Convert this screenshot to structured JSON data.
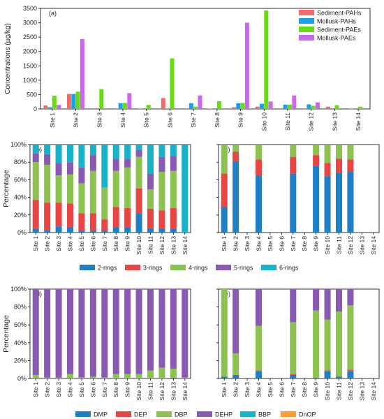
{
  "colors": {
    "sediment_pahs": "#f26b6b",
    "mollusk_pahs": "#1aa1e6",
    "sediment_paes": "#66dd11",
    "mollusk_paes": "#cc66ee",
    "r2": "#1f7fc4",
    "r3": "#e84545",
    "r4": "#8cc24f",
    "r5": "#8a5ab3",
    "r6": "#1ab2c9",
    "dmp": "#1f7fc4",
    "dep": "#e84545",
    "dbp": "#8cc24f",
    "dehp": "#8a5ab3",
    "bbp": "#1ab2c9",
    "dnop": "#ff9b33"
  },
  "chart_data": [
    {
      "panel": "(a)",
      "type": "bar",
      "ylabel": "Concentrations (µg/kg)",
      "ylim": [
        0,
        3500
      ],
      "yticks": [
        0,
        500,
        1000,
        1500,
        2000,
        2500,
        3000,
        3500
      ],
      "categories": [
        "Site 1",
        "Site 2",
        "Site 3",
        "Site 4",
        "Site 5",
        "Site 6",
        "Site 7",
        "Site 8",
        "Site 9",
        "Site 10",
        "Site 11",
        "Site 12",
        "Site 13",
        "Site 14"
      ],
      "legend_position": "top-right",
      "series": [
        {
          "name": "Sediment-PAHs",
          "color_key": "sediment_pahs",
          "values": [
            120,
            520,
            20,
            20,
            10,
            380,
            20,
            10,
            60,
            80,
            20,
            20,
            80,
            10
          ]
        },
        {
          "name": "Mollusk-PAHs",
          "color_key": "mollusk_pahs",
          "values": [
            60,
            520,
            0,
            200,
            0,
            0,
            200,
            0,
            200,
            180,
            150,
            160,
            0,
            0
          ]
        },
        {
          "name": "Sediment-PAEs",
          "color_key": "sediment_paes",
          "values": [
            460,
            600,
            690,
            210,
            140,
            1760,
            80,
            270,
            210,
            3430,
            150,
            110,
            130,
            80
          ]
        },
        {
          "name": "Mollusk-PAEs",
          "color_key": "mollusk_paes",
          "values": [
            140,
            2430,
            0,
            550,
            0,
            0,
            470,
            0,
            3000,
            260,
            470,
            230,
            0,
            0
          ]
        }
      ]
    },
    {
      "panel": "(b)",
      "type": "bar",
      "stacked": true,
      "ylabel": "Percentage",
      "yticks": [
        "0%",
        "20%",
        "40%",
        "60%",
        "80%",
        "100%"
      ],
      "categories": [
        "Site 1",
        "Site 2",
        "Site 3",
        "Site 4",
        "Site 5",
        "Site 6",
        "Site 7",
        "Site 8",
        "Site 9",
        "Site 10",
        "Site 11",
        "Site 12",
        "Site 13",
        "Site 14"
      ],
      "series": [
        {
          "name": "2-rings",
          "color_key": "r2",
          "values": [
            4,
            3,
            7,
            6,
            2,
            2,
            2,
            6,
            6,
            22,
            5,
            4,
            4,
            0
          ]
        },
        {
          "name": "3-rings",
          "color_key": "r3",
          "values": [
            33,
            31,
            27,
            27,
            20,
            20,
            13,
            23,
            22,
            28,
            22,
            21,
            24,
            0
          ]
        },
        {
          "name": "4-rings",
          "color_key": "r4",
          "values": [
            43,
            43,
            31,
            33,
            34,
            48,
            36,
            41,
            46,
            36,
            22,
            44,
            42,
            0
          ]
        },
        {
          "name": "5-rings",
          "color_key": "r5",
          "values": [
            10,
            12,
            14,
            14,
            18,
            18,
            0,
            14,
            10,
            8,
            18,
            17,
            17,
            0
          ]
        },
        {
          "name": "6-rings",
          "color_key": "r6",
          "values": [
            10,
            11,
            21,
            20,
            26,
            12,
            49,
            16,
            16,
            6,
            33,
            14,
            13,
            100
          ]
        }
      ]
    },
    {
      "panel": "(c)",
      "type": "bar",
      "stacked": true,
      "categories": [
        "Site 1",
        "Site 2",
        "Site 3",
        "Site 4",
        "Site 5",
        "Site 6",
        "Site 7",
        "Site 8",
        "Site 9",
        "Site 10",
        "Site 11",
        "Site 12",
        "Site 13",
        "Site 14"
      ],
      "series": [
        {
          "name": "2-rings",
          "color_key": "r2",
          "values": [
            29,
            81,
            0,
            65,
            0,
            0,
            67,
            0,
            76,
            64,
            68,
            69,
            0,
            0
          ]
        },
        {
          "name": "3-rings",
          "color_key": "r3",
          "values": [
            38,
            11,
            0,
            18,
            0,
            0,
            19,
            0,
            12,
            15,
            16,
            14,
            0,
            0
          ]
        },
        {
          "name": "4-rings",
          "color_key": "r4",
          "values": [
            33,
            8,
            0,
            17,
            0,
            0,
            14,
            0,
            12,
            21,
            16,
            17,
            0,
            0
          ]
        },
        {
          "name": "5-rings",
          "color_key": "r5",
          "values": [
            0,
            0,
            0,
            0,
            0,
            0,
            0,
            0,
            0,
            0,
            0,
            0,
            0,
            0
          ]
        },
        {
          "name": "6-rings",
          "color_key": "r6",
          "values": [
            0,
            0,
            0,
            0,
            0,
            0,
            0,
            0,
            0,
            0,
            0,
            0,
            0,
            0
          ]
        }
      ]
    },
    {
      "panel": "(d)",
      "type": "bar",
      "stacked": true,
      "ylabel": "Percentage",
      "yticks": [
        "0%",
        "20%",
        "40%",
        "60%",
        "80%",
        "100%"
      ],
      "categories": [
        "Site 1",
        "Site 2",
        "Site 3",
        "Site 4",
        "Site 5",
        "Site 6",
        "Site 7",
        "Site 8",
        "Site 9",
        "Site 10",
        "Site 11",
        "Site 12",
        "Site 13",
        "Site 14"
      ],
      "series": [
        {
          "name": "DMP",
          "color_key": "dmp",
          "values": [
            0,
            0,
            0,
            0,
            0,
            0,
            0,
            0,
            0,
            0,
            0,
            0,
            1,
            0
          ]
        },
        {
          "name": "DEP",
          "color_key": "dep",
          "values": [
            0,
            0,
            0,
            0,
            0,
            0,
            0,
            0,
            0,
            0,
            0,
            0,
            0,
            0
          ]
        },
        {
          "name": "DBP",
          "color_key": "dbp",
          "values": [
            4,
            1,
            1,
            5,
            1,
            2,
            1,
            5,
            5,
            5,
            9,
            12,
            10,
            1
          ]
        },
        {
          "name": "DEHP",
          "color_key": "dehp",
          "values": [
            96,
            99,
            99,
            95,
            99,
            98,
            99,
            95,
            95,
            95,
            91,
            88,
            89,
            99
          ]
        },
        {
          "name": "BBP",
          "color_key": "bbp",
          "values": [
            0,
            0,
            0,
            0,
            0,
            0,
            0,
            0,
            0,
            0,
            0,
            0,
            0,
            0
          ]
        },
        {
          "name": "DnOP",
          "color_key": "dnop",
          "values": [
            0,
            0,
            0,
            0,
            0,
            0,
            0,
            0,
            0,
            0,
            0,
            0,
            0,
            0
          ]
        }
      ]
    },
    {
      "panel": "(e)",
      "type": "bar",
      "stacked": true,
      "categories": [
        "Site 1",
        "Site 2",
        "Site 3",
        "Site 4",
        "Site 5",
        "Site 6",
        "Site 7",
        "Site 8",
        "Site 9",
        "Site 10",
        "Site 11",
        "Site 12",
        "Site 13",
        "Site 14"
      ],
      "series": [
        {
          "name": "DMP",
          "color_key": "dmp",
          "values": [
            2,
            4,
            0,
            8,
            0,
            0,
            4,
            0,
            1,
            8,
            2,
            8,
            0,
            0
          ]
        },
        {
          "name": "DEP",
          "color_key": "dep",
          "values": [
            0,
            0,
            0,
            1,
            0,
            0,
            1,
            0,
            0,
            1,
            0,
            2,
            0,
            0
          ]
        },
        {
          "name": "DBP",
          "color_key": "dbp",
          "values": [
            98,
            24,
            0,
            50,
            0,
            0,
            58,
            0,
            75,
            57,
            73,
            72,
            0,
            0
          ]
        },
        {
          "name": "DEHP",
          "color_key": "dehp",
          "values": [
            0,
            72,
            0,
            41,
            0,
            0,
            37,
            0,
            24,
            34,
            25,
            18,
            0,
            0
          ]
        },
        {
          "name": "BBP",
          "color_key": "bbp",
          "values": [
            0,
            0,
            0,
            0,
            0,
            0,
            0,
            0,
            0,
            0,
            0,
            0,
            0,
            0
          ]
        },
        {
          "name": "DnOP",
          "color_key": "dnop",
          "values": [
            0,
            0,
            0,
            0,
            0,
            0,
            0,
            0,
            0,
            0,
            0,
            0,
            0,
            0
          ]
        }
      ]
    }
  ],
  "legend_rings": [
    "2-rings",
    "3-rings",
    "4-rings",
    "5-rings",
    "6-rings"
  ],
  "legend_paes": [
    "DMP",
    "DEP",
    "DBP",
    "DEHP",
    "BBP",
    "DnOP"
  ]
}
